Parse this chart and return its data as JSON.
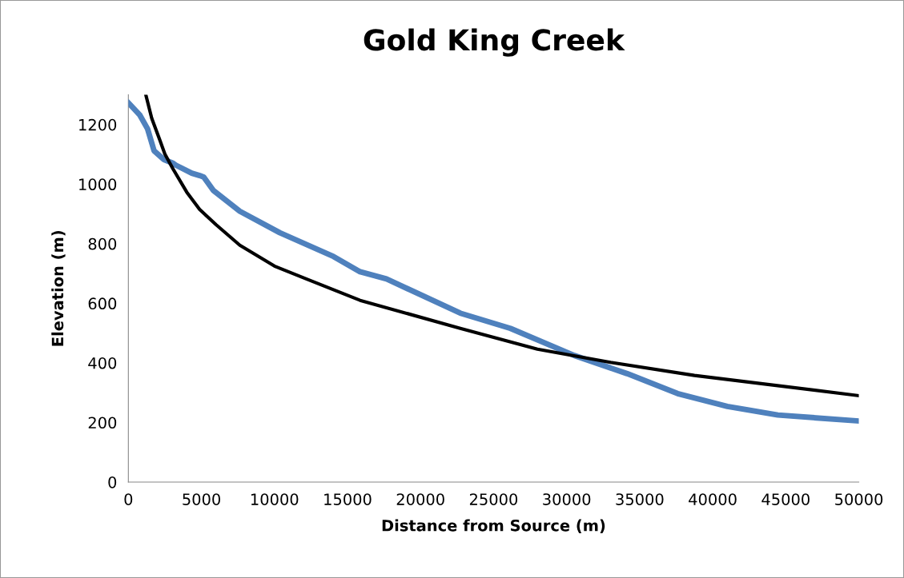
{
  "chart_data": {
    "type": "line",
    "title": "Gold King Creek",
    "xlabel": "Distance from Source (m)",
    "ylabel": "Elevation (m)",
    "xlim": [
      0,
      50000
    ],
    "xticks": [
      0,
      5000,
      10000,
      15000,
      20000,
      25000,
      30000,
      35000,
      40000,
      45000,
      50000
    ],
    "ylim": [
      0,
      1300
    ],
    "yticks": [
      0,
      200,
      400,
      600,
      800,
      1000,
      1200
    ],
    "grid": false,
    "legend": false,
    "marker": "none",
    "series": [
      {
        "color": "#4f81bd",
        "x": [
          0,
          770,
          1320,
          1760,
          2420,
          3070,
          3240,
          4340,
          4880,
          5160,
          5820,
          7630,
          10370,
          14050,
          15860,
          17670,
          22720,
          26150,
          30520,
          34140,
          37600,
          41000,
          44460,
          50000
        ],
        "values": [
          1273,
          1233,
          1185,
          1112,
          1083,
          1070,
          1064,
          1037,
          1029,
          1024,
          979,
          909,
          837,
          757,
          706,
          682,
          567,
          516,
          425,
          364,
          297,
          254,
          225,
          205
        ]
      },
      {
        "color": "#000000",
        "x": [
          1210,
          1600,
          2140,
          2500,
          3070,
          4000,
          4880,
          6000,
          7630,
          10000,
          12180,
          15860,
          22720,
          28000,
          33000,
          38750,
          50000
        ],
        "values": [
          1297,
          1221,
          1150,
          1101,
          1050,
          973,
          915,
          864,
          795,
          725,
          682,
          610,
          516,
          446,
          402,
          358,
          290
        ]
      }
    ]
  }
}
